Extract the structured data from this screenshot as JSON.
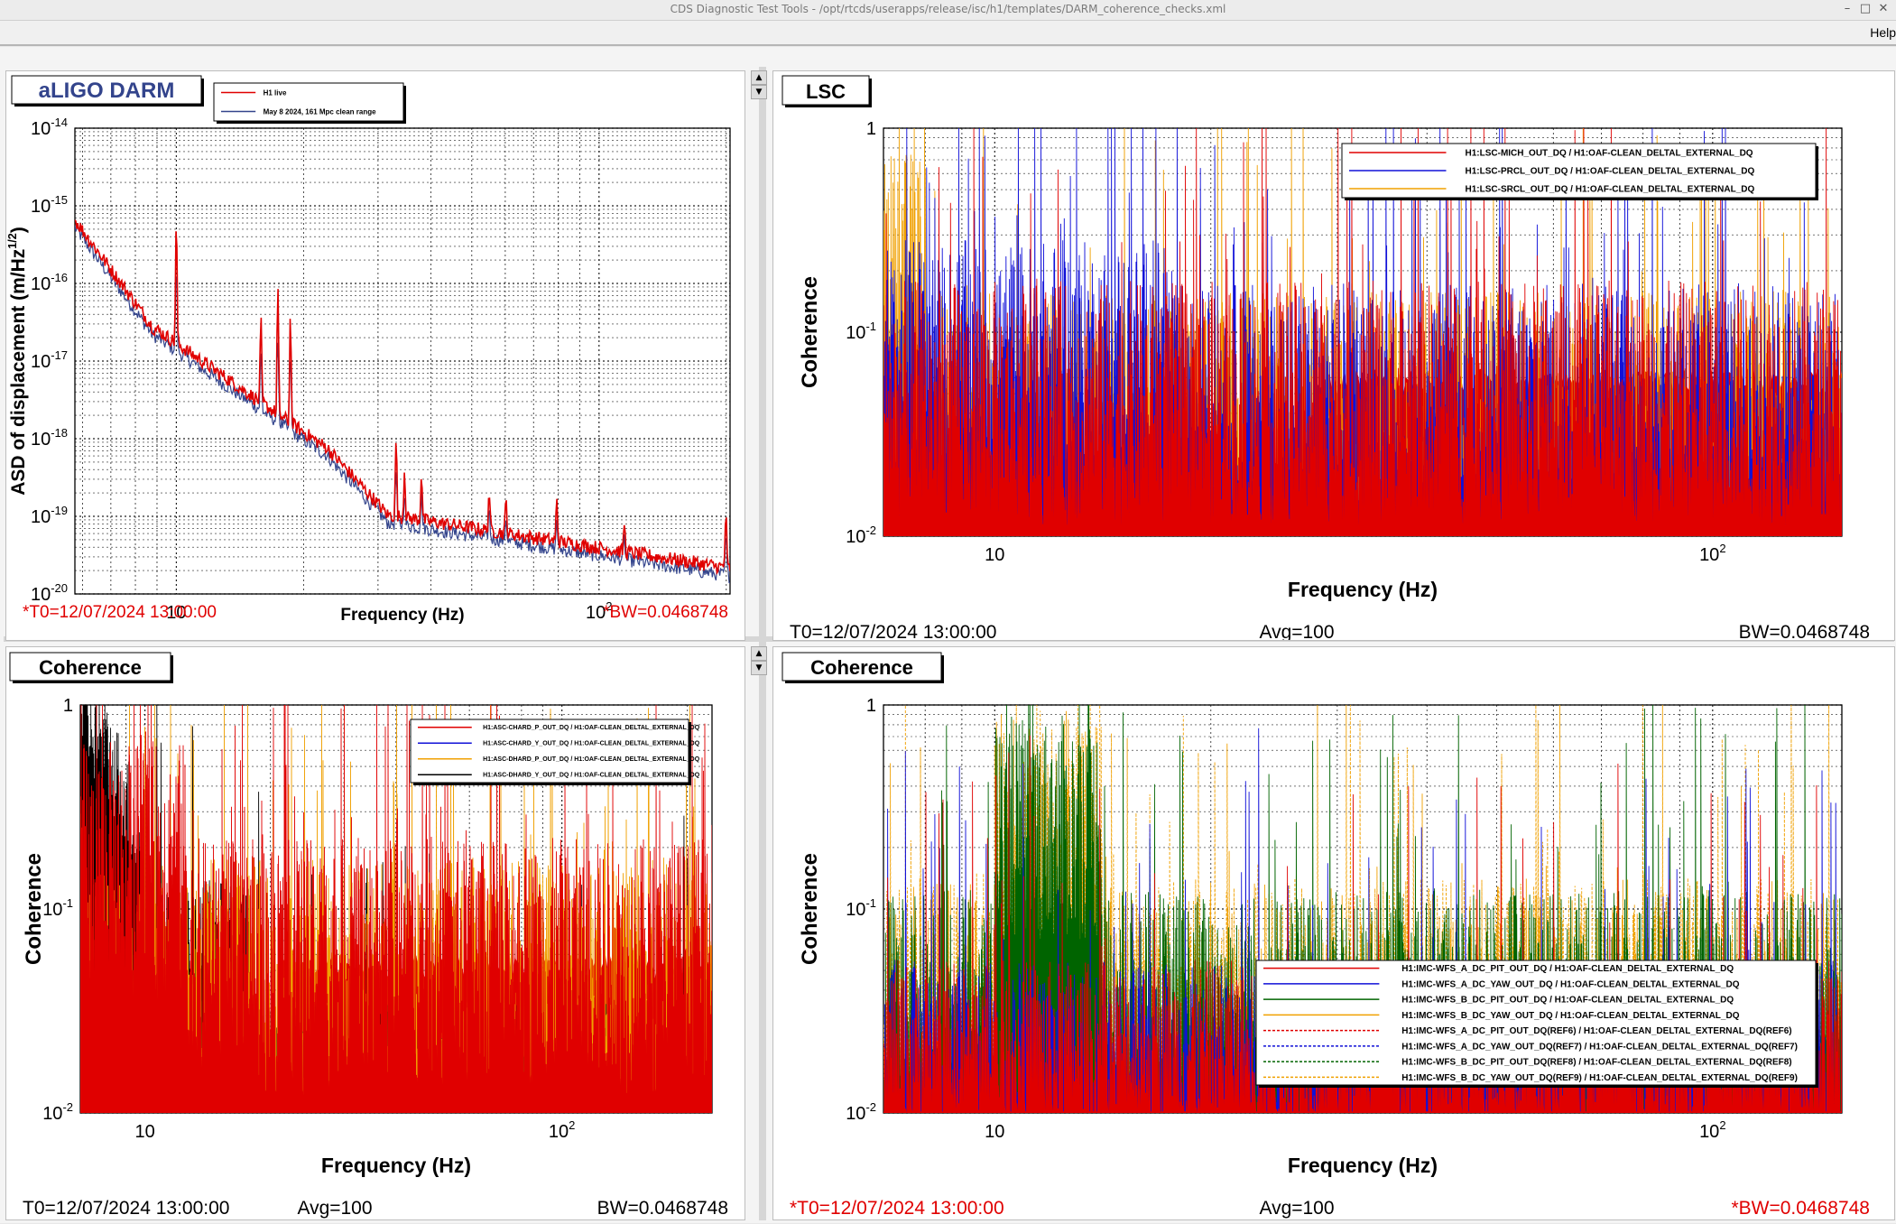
{
  "window": {
    "title": "CDS Diagnostic Test Tools - /opt/rtcds/userapps/release/isc/h1/templates/DARM_coherence_checks.xml",
    "controls": {
      "minimize": "–",
      "maximize": "□",
      "close": "✕"
    }
  },
  "menubar": {
    "help": "Help"
  },
  "colors": {
    "red": "#e00000",
    "blue": "#1010d8",
    "orange": "#f0a000",
    "black": "#000000",
    "green": "#006400",
    "darkblue": "#33448c",
    "status_red": "#e00000"
  },
  "panels": [
    {
      "id": "darm",
      "title": "aLIGO DARM",
      "ylabel": "ASD of displacement (m/Hz",
      "ylabel_sup": "1/2",
      "ylabel_close": ")",
      "xlabel": "Frequency (Hz)",
      "status_left": "*T0=12/07/2024 13:00:00",
      "status_mid": "",
      "status_right": "*BW=0.0468748",
      "status_color": "red",
      "yticks": [
        {
          "base": "10",
          "exp": "-14"
        },
        {
          "base": "10",
          "exp": "-15"
        },
        {
          "base": "10",
          "exp": "-16"
        },
        {
          "base": "10",
          "exp": "-17"
        },
        {
          "base": "10",
          "exp": "-18"
        },
        {
          "base": "10",
          "exp": "-19"
        },
        {
          "base": "10",
          "exp": "-20"
        }
      ],
      "xticks": [
        {
          "base": "10",
          "exp": ""
        },
        {
          "base": "10",
          "exp": "2"
        }
      ],
      "legend": [
        "H1 live",
        "May 8 2024, 161 Mpc clean range"
      ]
    },
    {
      "id": "lsc",
      "title": "LSC",
      "ylabel": "Coherence",
      "xlabel": "Frequency (Hz)",
      "status_left": "T0=12/07/2024 13:00:00",
      "status_mid": "Avg=100",
      "status_right": "BW=0.0468748",
      "status_color": "black",
      "yticks": [
        {
          "base": "1",
          "exp": ""
        },
        {
          "base": "10",
          "exp": "-1"
        },
        {
          "base": "10",
          "exp": "-2"
        }
      ],
      "xticks": [
        {
          "base": "10",
          "exp": ""
        },
        {
          "base": "10",
          "exp": "2"
        }
      ],
      "legend": [
        "H1:LSC-MICH_OUT_DQ / H1:OAF-CLEAN_DELTAL_EXTERNAL_DQ",
        "H1:LSC-PRCL_OUT_DQ / H1:OAF-CLEAN_DELTAL_EXTERNAL_DQ",
        "H1:LSC-SRCL_OUT_DQ / H1:OAF-CLEAN_DELTAL_EXTERNAL_DQ"
      ]
    },
    {
      "id": "asc",
      "title": "Coherence",
      "ylabel": "Coherence",
      "xlabel": "Frequency (Hz)",
      "status_left": "T0=12/07/2024 13:00:00",
      "status_mid": "Avg=100",
      "status_right": "BW=0.0468748",
      "status_color": "black",
      "yticks": [
        {
          "base": "1",
          "exp": ""
        },
        {
          "base": "10",
          "exp": "-1"
        },
        {
          "base": "10",
          "exp": "-2"
        }
      ],
      "xticks": [
        {
          "base": "10",
          "exp": ""
        },
        {
          "base": "10",
          "exp": "2"
        }
      ],
      "legend": [
        "H1:ASC-CHARD_P_OUT_DQ / H1:OAF-CLEAN_DELTAL_EXTERNAL_DQ",
        "H1:ASC-CHARD_Y_OUT_DQ / H1:OAF-CLEAN_DELTAL_EXTERNAL_DQ",
        "H1:ASC-DHARD_P_OUT_DQ / H1:OAF-CLEAN_DELTAL_EXTERNAL_DQ",
        "H1:ASC-DHARD_Y_OUT_DQ / H1:OAF-CLEAN_DELTAL_EXTERNAL_DQ"
      ]
    },
    {
      "id": "imc",
      "title": "Coherence",
      "ylabel": "Coherence",
      "xlabel": "Frequency (Hz)",
      "status_left": "*T0=12/07/2024 13:00:00",
      "status_mid": "Avg=100",
      "status_right": "*BW=0.0468748",
      "status_color": "red",
      "yticks": [
        {
          "base": "1",
          "exp": ""
        },
        {
          "base": "10",
          "exp": "-1"
        },
        {
          "base": "10",
          "exp": "-2"
        }
      ],
      "xticks": [
        {
          "base": "10",
          "exp": ""
        },
        {
          "base": "10",
          "exp": "2"
        }
      ],
      "legend": [
        "H1:IMC-WFS_A_DC_PIT_OUT_DQ / H1:OAF-CLEAN_DELTAL_EXTERNAL_DQ",
        "H1:IMC-WFS_A_DC_YAW_OUT_DQ / H1:OAF-CLEAN_DELTAL_EXTERNAL_DQ",
        "H1:IMC-WFS_B_DC_PIT_OUT_DQ / H1:OAF-CLEAN_DELTAL_EXTERNAL_DQ",
        "H1:IMC-WFS_B_DC_YAW_OUT_DQ / H1:OAF-CLEAN_DELTAL_EXTERNAL_DQ",
        "H1:IMC-WFS_A_DC_PIT_OUT_DQ(REF6) / H1:OAF-CLEAN_DELTAL_EXTERNAL_DQ(REF6)",
        "H1:IMC-WFS_A_DC_YAW_OUT_DQ(REF7) / H1:OAF-CLEAN_DELTAL_EXTERNAL_DQ(REF7)",
        "H1:IMC-WFS_B_DC_PIT_OUT_DQ(REF8) / H1:OAF-CLEAN_DELTAL_EXTERNAL_DQ(REF8)",
        "H1:IMC-WFS_B_DC_YAW_OUT_DQ(REF9) / H1:OAF-CLEAN_DELTAL_EXTERNAL_DQ(REF9)"
      ]
    }
  ]
}
